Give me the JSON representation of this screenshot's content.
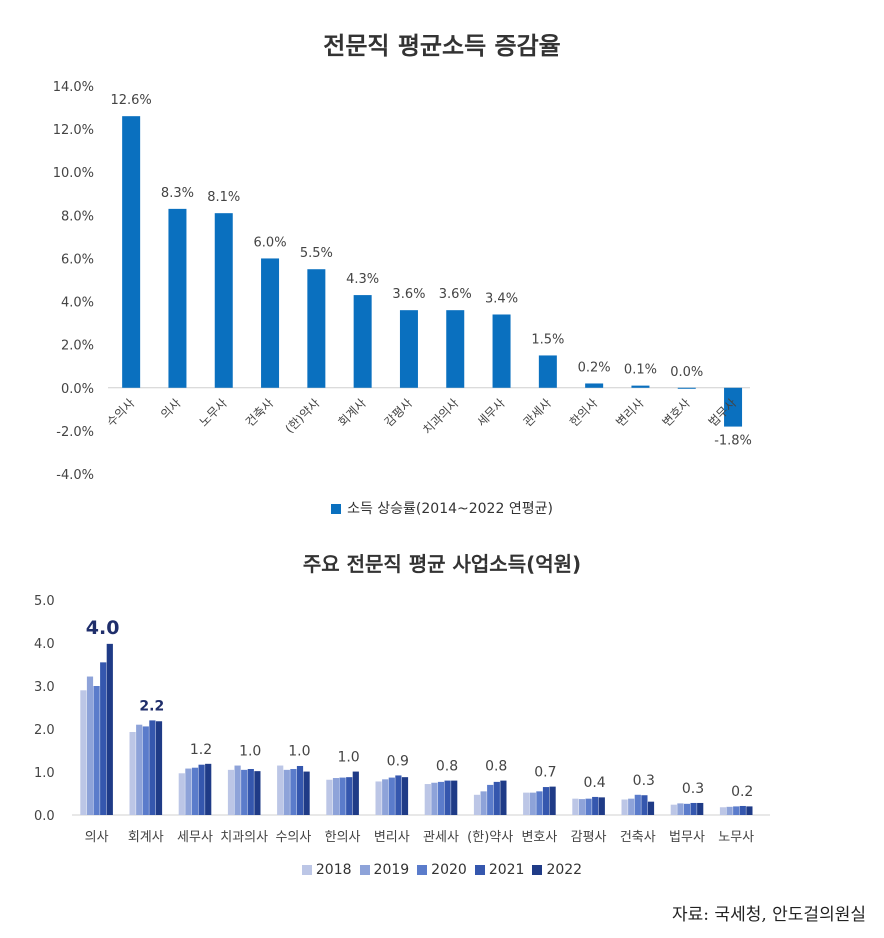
{
  "source": "자료: 국세청, 안도걸의원실",
  "colors": {
    "chart1_bar": "#0a70bf",
    "chart2_series": [
      "#bcc6e6",
      "#8ea3d9",
      "#5b7ccb",
      "#3557ae",
      "#1f3b87"
    ],
    "highlight_label": "#1f2e6b"
  },
  "chart_data": [
    {
      "type": "bar",
      "title": "전문직 평균소득 증감율",
      "categories": [
        "수의사",
        "의사",
        "노무사",
        "건축사",
        "(한)약사",
        "회계사",
        "감평사",
        "치과의사",
        "세무사",
        "관세사",
        "한의사",
        "변리사",
        "변호사",
        "법무사"
      ],
      "series": [
        {
          "name": "소득 상승률(2014~2022 연평균)",
          "values": [
            12.6,
            8.3,
            8.1,
            6.0,
            5.5,
            4.3,
            3.6,
            3.6,
            3.4,
            1.5,
            0.2,
            0.1,
            0.0,
            -1.8
          ]
        }
      ],
      "data_labels": [
        "12.6%",
        "8.3%",
        "8.1%",
        "6.0%",
        "5.5%",
        "4.3%",
        "3.6%",
        "3.6%",
        "3.4%",
        "1.5%",
        "0.2%",
        "0.1%",
        "0.0%",
        "-1.8%"
      ],
      "yticks": [
        "14.0%",
        "12.0%",
        "10.0%",
        "8.0%",
        "6.0%",
        "4.0%",
        "2.0%",
        "0.0%",
        "-2.0%",
        "-4.0%"
      ],
      "ylim": [
        -4,
        14
      ],
      "legend": "bottom"
    },
    {
      "type": "bar",
      "title": "주요 전문직 평균 사업소득(억원)",
      "categories": [
        "의사",
        "회계사",
        "세무사",
        "치과의사",
        "수의사",
        "한의사",
        "변리사",
        "관세사",
        "(한)약사",
        "변호사",
        "감평사",
        "건축사",
        "법무사",
        "노무사"
      ],
      "series": [
        {
          "name": "2018",
          "values": [
            2.9,
            1.93,
            0.97,
            1.05,
            1.15,
            0.82,
            0.78,
            0.72,
            0.47,
            0.52,
            0.38,
            0.36,
            0.24,
            0.18
          ]
        },
        {
          "name": "2019",
          "values": [
            3.22,
            2.1,
            1.08,
            1.15,
            1.05,
            0.86,
            0.83,
            0.75,
            0.55,
            0.52,
            0.37,
            0.38,
            0.27,
            0.19
          ]
        },
        {
          "name": "2020",
          "values": [
            3.0,
            2.06,
            1.1,
            1.05,
            1.07,
            0.87,
            0.87,
            0.77,
            0.7,
            0.55,
            0.38,
            0.47,
            0.26,
            0.2
          ]
        },
        {
          "name": "2021",
          "values": [
            3.55,
            2.2,
            1.17,
            1.07,
            1.14,
            0.88,
            0.92,
            0.8,
            0.77,
            0.65,
            0.42,
            0.46,
            0.28,
            0.21
          ]
        },
        {
          "name": "2022",
          "values": [
            3.98,
            2.18,
            1.19,
            1.02,
            1.01,
            1.01,
            0.88,
            0.8,
            0.8,
            0.66,
            0.41,
            0.31,
            0.28,
            0.2
          ]
        }
      ],
      "data_labels": [
        "4.0",
        "2.2",
        "1.2",
        "1.0",
        "1.0",
        "1.0",
        "0.9",
        "0.8",
        "0.8",
        "0.7",
        "0.4",
        "0.3",
        "0.3",
        "0.2"
      ],
      "yticks": [
        "5.0",
        "4.0",
        "3.0",
        "2.0",
        "1.0",
        "0.0"
      ],
      "ylim": [
        0,
        5
      ],
      "legend": "bottom"
    }
  ]
}
